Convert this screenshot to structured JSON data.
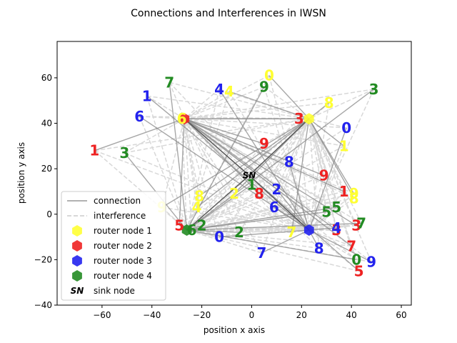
{
  "chart_data": {
    "type": "scatter",
    "title": "Connections and Interferences in IWSN",
    "xlabel": "position x axis",
    "ylabel": "position y axis",
    "xlim": [
      -78,
      64
    ],
    "ylim": [
      -40,
      76
    ],
    "xticks": [
      -60,
      -40,
      -20,
      0,
      20,
      40,
      60
    ],
    "yticks": [
      -40,
      -20,
      0,
      20,
      40,
      60
    ],
    "legend_position": "lower-left",
    "colors": {
      "yellow": "#ffff33",
      "red": "#ee2222",
      "blue": "#2222ee",
      "green": "#228b22"
    },
    "series": [
      {
        "name": "connection",
        "mark": "line",
        "color": "#999999"
      },
      {
        "name": "interference",
        "mark": "dashed-line",
        "color": "#cccccc"
      },
      {
        "name": "router node 1",
        "mark": "hexagon",
        "color": "#ffff33"
      },
      {
        "name": "router node 2",
        "mark": "hexagon",
        "color": "#ee2222"
      },
      {
        "name": "router node 3",
        "mark": "hexagon",
        "color": "#2222ee"
      },
      {
        "name": "router node 4",
        "mark": "hexagon",
        "color": "#228b22"
      },
      {
        "name": "sink node",
        "mark": "text",
        "label": "SN"
      }
    ],
    "routers": [
      {
        "group": 1,
        "x": 23,
        "y": 42
      },
      {
        "group": 2,
        "x": -27,
        "y": 42
      },
      {
        "group": 3,
        "x": 23,
        "y": -7
      },
      {
        "group": 4,
        "x": -26,
        "y": -7
      }
    ],
    "sink": {
      "x": -1,
      "y": 17,
      "label": "SN"
    },
    "nodes": [
      {
        "label": "6",
        "group": 1,
        "x": -28,
        "y": 42
      },
      {
        "label": "0",
        "group": 1,
        "x": 7,
        "y": 61
      },
      {
        "label": "4",
        "group": 1,
        "x": -9,
        "y": 54
      },
      {
        "label": "8",
        "group": 1,
        "x": 31,
        "y": 49
      },
      {
        "label": "1",
        "group": 1,
        "x": 37,
        "y": 30
      },
      {
        "label": "8",
        "group": 1,
        "x": -21,
        "y": 8
      },
      {
        "label": "4",
        "group": 1,
        "x": -22,
        "y": 3
      },
      {
        "label": "2",
        "group": 1,
        "x": -7,
        "y": 9
      },
      {
        "label": "7",
        "group": 1,
        "x": 16,
        "y": -8
      },
      {
        "label": "9",
        "group": 1,
        "x": 41,
        "y": 9
      },
      {
        "label": "8",
        "group": 1,
        "x": 41,
        "y": 7
      },
      {
        "label": "9",
        "group": 1,
        "x": -36,
        "y": 3
      },
      {
        "label": "1",
        "group": 2,
        "x": -63,
        "y": 28
      },
      {
        "label": "9",
        "group": 2,
        "x": 5,
        "y": 31
      },
      {
        "label": "3",
        "group": 2,
        "x": 19,
        "y": 42
      },
      {
        "label": "9",
        "group": 2,
        "x": 29,
        "y": 17
      },
      {
        "label": "1",
        "group": 2,
        "x": 37,
        "y": 10
      },
      {
        "label": "8",
        "group": 2,
        "x": 3,
        "y": 9
      },
      {
        "label": "5",
        "group": 2,
        "x": -29,
        "y": -5
      },
      {
        "label": "3",
        "group": 2,
        "x": 34,
        "y": -7
      },
      {
        "label": "3",
        "group": 2,
        "x": 42,
        "y": -5
      },
      {
        "label": "7",
        "group": 2,
        "x": 40,
        "y": -14
      },
      {
        "label": "5",
        "group": 2,
        "x": 43,
        "y": -25
      },
      {
        "label": "1",
        "group": 3,
        "x": -42,
        "y": 52
      },
      {
        "label": "4",
        "group": 3,
        "x": -13,
        "y": 55
      },
      {
        "label": "6",
        "group": 3,
        "x": -45,
        "y": 43
      },
      {
        "label": "0",
        "group": 3,
        "x": 38,
        "y": 38
      },
      {
        "label": "8",
        "group": 3,
        "x": 15,
        "y": 23
      },
      {
        "label": "2",
        "group": 3,
        "x": 10,
        "y": 11
      },
      {
        "label": "6",
        "group": 3,
        "x": 9,
        "y": 3
      },
      {
        "label": "4",
        "group": 3,
        "x": 34,
        "y": -6
      },
      {
        "label": "0",
        "group": 3,
        "x": -13,
        "y": -10
      },
      {
        "label": "7",
        "group": 3,
        "x": 4,
        "y": -17
      },
      {
        "label": "8",
        "group": 3,
        "x": 27,
        "y": -15
      },
      {
        "label": "9",
        "group": 3,
        "x": 48,
        "y": -21
      },
      {
        "label": "7",
        "group": 4,
        "x": -33,
        "y": 58
      },
      {
        "label": "9",
        "group": 4,
        "x": 5,
        "y": 56
      },
      {
        "label": "3",
        "group": 4,
        "x": 49,
        "y": 55
      },
      {
        "label": "3",
        "group": 4,
        "x": -51,
        "y": 27
      },
      {
        "label": "1",
        "group": 4,
        "x": 0,
        "y": 13
      },
      {
        "label": "5",
        "group": 4,
        "x": 30,
        "y": 1
      },
      {
        "label": "5",
        "group": 4,
        "x": 34,
        "y": 3
      },
      {
        "label": "7",
        "group": 4,
        "x": 44,
        "y": -4
      },
      {
        "label": "2",
        "group": 4,
        "x": -20,
        "y": -5
      },
      {
        "label": "6",
        "group": 4,
        "x": -24,
        "y": -7
      },
      {
        "label": "2",
        "group": 4,
        "x": -5,
        "y": -8
      },
      {
        "label": "0",
        "group": 4,
        "x": 42,
        "y": -20
      }
    ]
  }
}
